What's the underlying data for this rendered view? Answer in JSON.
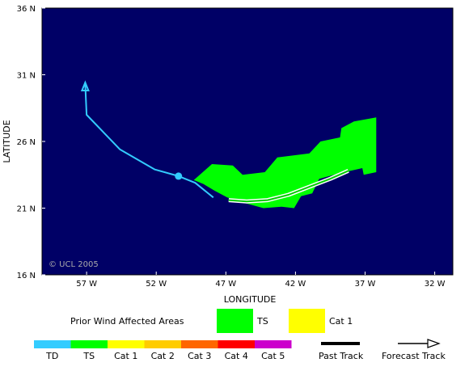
{
  "map": {
    "y_axis_label": "LATITUDE",
    "x_axis_label": "LONGITUDE",
    "copyright": "© UCL 2005",
    "background_color": "#000066",
    "lat_ticks": [
      {
        "value": 36,
        "label": "36 N"
      },
      {
        "value": 31,
        "label": "31 N"
      },
      {
        "value": 26,
        "label": "26 N"
      },
      {
        "value": 21,
        "label": "21 N"
      },
      {
        "value": 16,
        "label": "16 N"
      }
    ],
    "lon_ticks": [
      {
        "value": -57,
        "label": "57 W"
      },
      {
        "value": -52,
        "label": "52 W"
      },
      {
        "value": -47,
        "label": "47 W"
      },
      {
        "value": -42,
        "label": "42 W"
      },
      {
        "value": -37,
        "label": "37 W"
      },
      {
        "value": -32,
        "label": "32 W"
      }
    ],
    "extent": {
      "lon_min": -60.2,
      "lon_max": -30.7,
      "lat_min": 16,
      "lat_max": 36
    },
    "past_track": [
      [
        -38.2,
        23.8
      ],
      [
        -39.5,
        23.2
      ],
      [
        -41.0,
        22.6
      ],
      [
        -42.5,
        22.0
      ],
      [
        -44.0,
        21.6
      ],
      [
        -45.5,
        21.5
      ],
      [
        -46.8,
        21.6
      ]
    ],
    "past_track_color": "#ffffff",
    "forecast_track": [
      [
        -47.9,
        21.8
      ],
      [
        -49.2,
        22.9
      ],
      [
        -50.4,
        23.4
      ],
      [
        -52.1,
        23.9
      ],
      [
        -54.6,
        25.4
      ],
      [
        -57.0,
        28.0
      ],
      [
        -57.1,
        30.3
      ]
    ],
    "forecast_track_color": "#33ccff",
    "current_position": [
      -50.4,
      23.4
    ],
    "ts_wind_area": [
      [
        -49.3,
        23.1
      ],
      [
        -48.0,
        24.3
      ],
      [
        -46.5,
        24.2
      ],
      [
        -45.8,
        23.5
      ],
      [
        -44.2,
        23.7
      ],
      [
        -43.3,
        24.8
      ],
      [
        -41.0,
        25.1
      ],
      [
        -40.2,
        26.0
      ],
      [
        -38.8,
        26.3
      ],
      [
        -38.7,
        27.0
      ],
      [
        -37.8,
        27.5
      ],
      [
        -36.2,
        27.8
      ],
      [
        -36.2,
        23.7
      ],
      [
        -37.1,
        23.5
      ],
      [
        -37.2,
        24.0
      ],
      [
        -38.9,
        23.6
      ],
      [
        -40.3,
        23.2
      ],
      [
        -40.8,
        22.1
      ],
      [
        -41.6,
        21.9
      ],
      [
        -42.1,
        21.0
      ],
      [
        -43.0,
        21.1
      ],
      [
        -44.3,
        21.0
      ],
      [
        -45.7,
        21.4
      ],
      [
        -46.9,
        21.8
      ],
      [
        -47.8,
        22.3
      ],
      [
        -48.6,
        22.8
      ]
    ],
    "ts_area_color": "#00ff00"
  },
  "legend": {
    "prior_wind_label": "Prior Wind Affected Areas",
    "wind_areas": [
      {
        "label": "TS",
        "color": "#00ff00"
      },
      {
        "label": "Cat 1",
        "color": "#ffff00"
      }
    ],
    "intensity_scale": [
      {
        "label": "TD",
        "color": "#33ccff"
      },
      {
        "label": "TS",
        "color": "#00ff00"
      },
      {
        "label": "Cat 1",
        "color": "#ffff00"
      },
      {
        "label": "Cat 2",
        "color": "#ffcc00"
      },
      {
        "label": "Cat 3",
        "color": "#ff6600"
      },
      {
        "label": "Cat 4",
        "color": "#ff0000"
      },
      {
        "label": "Cat 5",
        "color": "#cc00cc"
      }
    ],
    "past_track_label": "Past Track",
    "forecast_track_label": "Forecast Track"
  }
}
